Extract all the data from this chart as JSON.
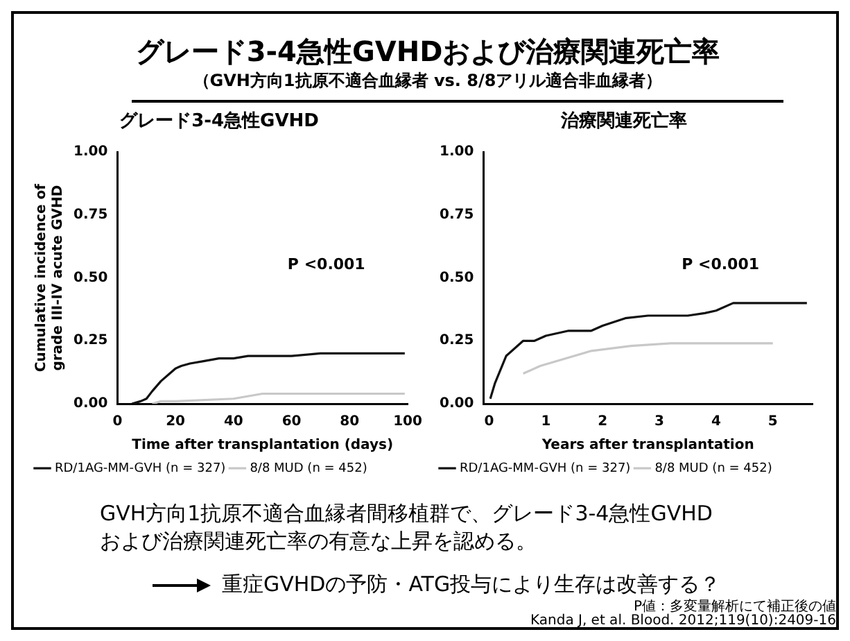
{
  "chart_data": [
    {
      "type": "other",
      "title": "グレード3-4急性GVHDおよび治療関連死亡率",
      "subtitle": "（GVH方向1抗原不適合血縁者 vs. 8/8アリル適合非血縁者）",
      "annotations": [
        "GVH方向1抗原不適合血縁者間移植群で、グレード3-4急性GVHDおよび治療関連死亡率の有意な上昇を認める。",
        "重症GVHDの予防・ATG投与により生存は改善する？",
        "P値：多変量解析にて補正後の値",
        "Kanda J, et al. Blood. 2012;119(10):2409-16"
      ]
    },
    {
      "type": "line",
      "title": "グレード3-4急性GVHD",
      "xlabel": "Time after transplantation (days)",
      "ylabel": "Cumulative incidence of\ngrade III-IV acute GVHD",
      "xlim": [
        0,
        100
      ],
      "xticks": [
        0,
        20,
        40,
        60,
        80,
        100
      ],
      "ylim": [
        0,
        1
      ],
      "yticks": [
        {
          "value": 0,
          "label": "0.00"
        },
        {
          "value": 0.25,
          "label": "0.25"
        },
        {
          "value": 0.5,
          "label": "0.50"
        },
        {
          "value": 0.75,
          "label": "0.75"
        },
        {
          "value": 1,
          "label": "1.00"
        }
      ],
      "grid": false,
      "legend": "bottom",
      "annotations": [
        "P <0.001"
      ],
      "series": [
        {
          "name": "RD/1AG-MM-GVH (n = 327)",
          "color": "#111111",
          "x": [
            5,
            8,
            10,
            12,
            15,
            18,
            20,
            22,
            25,
            30,
            35,
            40,
            45,
            60,
            70,
            99
          ],
          "values": [
            0,
            0.01,
            0.02,
            0.05,
            0.09,
            0.12,
            0.14,
            0.15,
            0.16,
            0.17,
            0.18,
            0.18,
            0.19,
            0.19,
            0.2,
            0.2
          ]
        },
        {
          "name": "8/8 MUD (n = 452)",
          "color": "#c8c8c8",
          "x": [
            12,
            15,
            20,
            40,
            50,
            60,
            99
          ],
          "values": [
            0,
            0.01,
            0.01,
            0.02,
            0.04,
            0.04,
            0.04
          ]
        }
      ]
    },
    {
      "type": "line",
      "title": "治療関連死亡率",
      "xlabel": "Years after transplantation",
      "xlim": [
        -0.1,
        5.7
      ],
      "xticks": [
        0,
        1,
        2,
        3,
        4,
        5
      ],
      "ylim": [
        0,
        1
      ],
      "yticks": [
        {
          "value": 0,
          "label": "0.00"
        },
        {
          "value": 0.25,
          "label": "0.25"
        },
        {
          "value": 0.5,
          "label": "0.50"
        },
        {
          "value": 0.75,
          "label": "0.75"
        },
        {
          "value": 1,
          "label": "1.00"
        }
      ],
      "grid": false,
      "legend": "bottom",
      "annotations": [
        "P <0.001"
      ],
      "series": [
        {
          "name": "RD/1AG-MM-GVH (n = 327)",
          "color": "#111111",
          "x": [
            0.02,
            0.1,
            0.3,
            0.6,
            0.8,
            1.0,
            1.4,
            1.8,
            2.0,
            2.4,
            2.8,
            3.5,
            3.8,
            4.0,
            4.3,
            5.6
          ],
          "values": [
            0.02,
            0.08,
            0.19,
            0.25,
            0.25,
            0.27,
            0.29,
            0.29,
            0.31,
            0.34,
            0.35,
            0.35,
            0.36,
            0.37,
            0.4,
            0.4
          ]
        },
        {
          "name": "8/8 MUD (n = 452)",
          "color": "#c8c8c8",
          "x": [
            0.6,
            0.9,
            1.8,
            2.5,
            3.2,
            5.0
          ],
          "values": [
            0.12,
            0.15,
            0.21,
            0.23,
            0.24,
            0.24
          ]
        }
      ]
    }
  ]
}
